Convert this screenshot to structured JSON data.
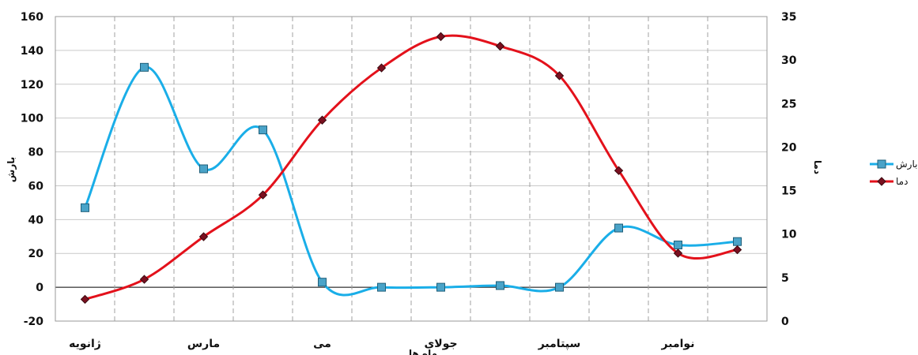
{
  "chart_data": {
    "type": "line",
    "smooth": true,
    "x": [
      1,
      2,
      3,
      4,
      5,
      6,
      7,
      8,
      9,
      10,
      11,
      12
    ],
    "x_tick_labels": [
      {
        "x": 1,
        "label": "ژانویه"
      },
      {
        "x": 3,
        "label": "مارس"
      },
      {
        "x": 5,
        "label": "می"
      },
      {
        "x": 7,
        "label": "جولای"
      },
      {
        "x": 9,
        "label": "سپتامبر"
      },
      {
        "x": 11,
        "label": "نوامبر"
      }
    ],
    "xlabel": "ماه ها",
    "ylabel": "بارش",
    "y2label": "دما",
    "ylim": [
      -20,
      160
    ],
    "y_ticks": [
      -20,
      0,
      20,
      40,
      60,
      80,
      100,
      120,
      140,
      160
    ],
    "y2lim": [
      0,
      35
    ],
    "y2_ticks": [
      0,
      5,
      10,
      15,
      20,
      25,
      30,
      35
    ],
    "grid": {
      "horizontal": true,
      "vertical": "dashed"
    },
    "legend_position": "right",
    "series": [
      {
        "name": "بارش",
        "axis": "left",
        "color": "#1aaee8",
        "marker": "square",
        "values": [
          47,
          130,
          70,
          93,
          3,
          0,
          0,
          1,
          0,
          35,
          25,
          27
        ]
      },
      {
        "name": "دما",
        "axis": "right",
        "color": "#e3111b",
        "marker": "diamond",
        "values": [
          2.5,
          4.8,
          9.7,
          14.5,
          23.1,
          29.1,
          32.7,
          31.6,
          28.2,
          17.3,
          7.8,
          8.2
        ]
      }
    ]
  }
}
